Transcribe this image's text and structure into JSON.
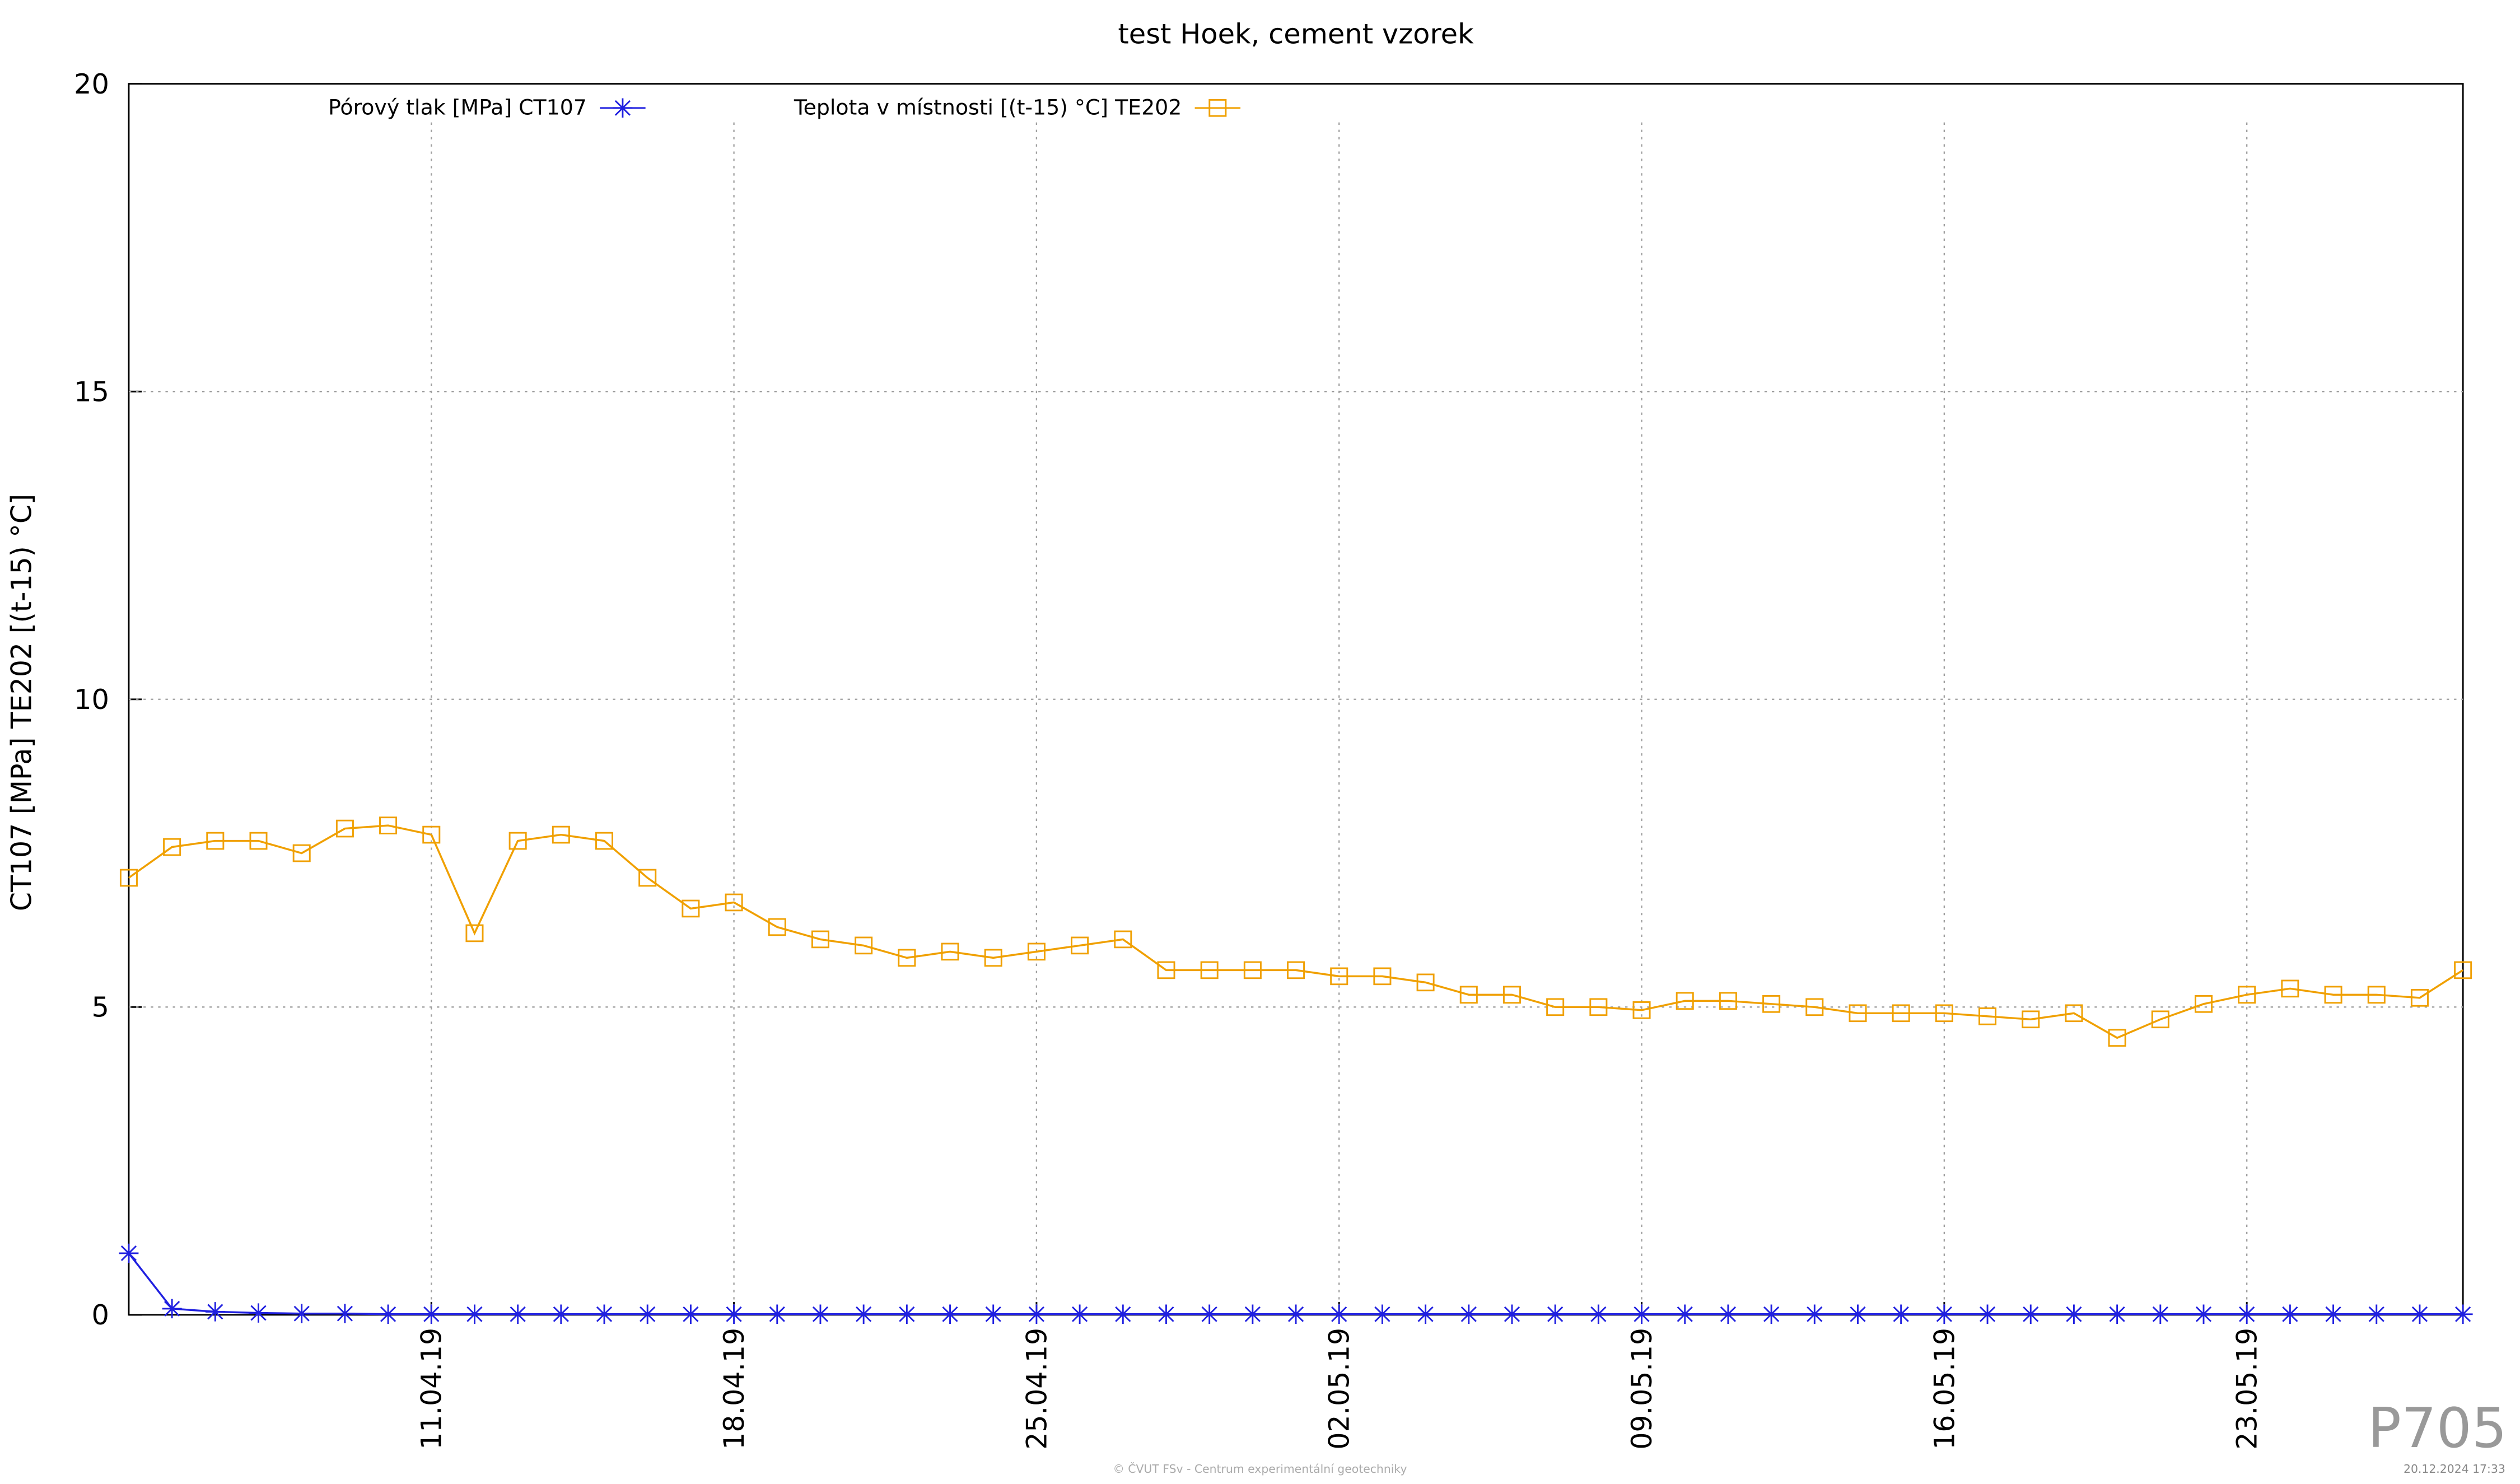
{
  "chart_data": {
    "type": "line",
    "title": "test Hoek, cement vzorek",
    "ylabel": "CT107 [MPa] TE202 [(t-15) °C]",
    "x": [
      "04.04.19",
      "05.04.19",
      "06.04.19",
      "07.04.19",
      "08.04.19",
      "09.04.19",
      "10.04.19",
      "11.04.19",
      "12.04.19",
      "13.04.19",
      "14.04.19",
      "15.04.19",
      "16.04.19",
      "17.04.19",
      "18.04.19",
      "19.04.19",
      "20.04.19",
      "21.04.19",
      "22.04.19",
      "23.04.19",
      "24.04.19",
      "25.04.19",
      "26.04.19",
      "27.04.19",
      "28.04.19",
      "29.04.19",
      "30.04.19",
      "01.05.19",
      "02.05.19",
      "03.05.19",
      "04.05.19",
      "05.05.19",
      "06.05.19",
      "07.05.19",
      "08.05.19",
      "09.05.19",
      "10.05.19",
      "11.05.19",
      "12.05.19",
      "13.05.19",
      "14.05.19",
      "15.05.19",
      "16.05.19",
      "17.05.19",
      "18.05.19",
      "19.05.19",
      "20.05.19",
      "21.05.19",
      "22.05.19",
      "23.05.19",
      "24.05.19",
      "25.05.19",
      "26.05.19",
      "27.05.19",
      "28.05.19"
    ],
    "series": [
      {
        "name": "Pórový tlak [MPa] CT107",
        "color": "#2020e0",
        "marker": "star",
        "values": [
          1.0,
          0.1,
          0.05,
          0.03,
          0.02,
          0.02,
          0.01,
          0.01,
          0.01,
          0.01,
          0.01,
          0.01,
          0.01,
          0.01,
          0.01,
          0.01,
          0.01,
          0.01,
          0.01,
          0.01,
          0.01,
          0.01,
          0.01,
          0.01,
          0.01,
          0.01,
          0.01,
          0.01,
          0.01,
          0.01,
          0.01,
          0.01,
          0.01,
          0.01,
          0.01,
          0.01,
          0.01,
          0.01,
          0.01,
          0.01,
          0.01,
          0.01,
          0.01,
          0.01,
          0.01,
          0.01,
          0.01,
          0.01,
          0.01,
          0.01,
          0.01,
          0.01,
          0.01,
          0.01,
          0.01
        ]
      },
      {
        "name": "Teplota v místnosti [(t-15) °C] TE202",
        "color": "#f0a000",
        "marker": "square",
        "values": [
          7.1,
          7.6,
          7.7,
          7.7,
          7.5,
          7.9,
          7.95,
          7.8,
          6.2,
          7.7,
          7.8,
          7.7,
          7.1,
          6.6,
          6.7,
          6.3,
          6.1,
          6.0,
          5.8,
          5.9,
          5.8,
          5.9,
          6.0,
          6.1,
          5.6,
          5.6,
          5.6,
          5.6,
          5.5,
          5.5,
          5.4,
          5.2,
          5.2,
          5.0,
          5.0,
          4.95,
          5.1,
          5.1,
          5.05,
          5.0,
          4.9,
          4.9,
          4.9,
          4.85,
          4.8,
          4.9,
          4.5,
          4.8,
          5.05,
          5.2,
          5.3,
          5.2,
          5.2,
          5.15,
          5.6
        ]
      }
    ],
    "xlim": [
      "04.04.19",
      "28.05.19"
    ],
    "xticks": [
      "11.04.19",
      "18.04.19",
      "25.04.19",
      "02.05.19",
      "09.05.19",
      "16.05.19",
      "23.05.19"
    ],
    "ylim": [
      0,
      20
    ],
    "yticks": [
      0,
      5,
      10,
      15,
      20
    ],
    "grid": true,
    "footer": "© ČVUT FSv - Centrum experimentální geotechniky",
    "timestamp": "20.12.2024 17:33",
    "code": "P705"
  }
}
